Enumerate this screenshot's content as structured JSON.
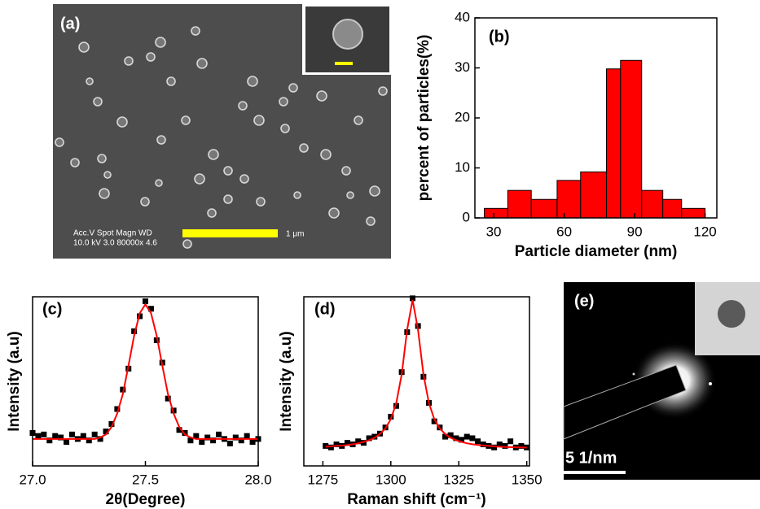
{
  "images": {
    "a": {
      "label": "(a)",
      "info": [
        "Acc.V  Spot Magn    WD",
        "10.0 kV 3.0   80000x  4.6"
      ],
      "scale": "1 μm"
    },
    "e": {
      "label": "(e)",
      "scale": "5 1/nm"
    }
  },
  "chart_data": [
    {
      "type": "histogram",
      "label": "(b)",
      "xlabel": "Particle diameter (nm)",
      "ylabel": "percent of particles(%)",
      "bins": [
        26,
        36,
        46,
        57,
        67,
        78,
        84,
        93,
        102,
        110,
        120
      ],
      "values": [
        1.9,
        5.5,
        3.7,
        7.5,
        9.2,
        29.8,
        31.5,
        5.5,
        3.7,
        1.9
      ],
      "color": "#ff0000",
      "xlim": [
        22,
        125
      ],
      "ylim": [
        0,
        40
      ],
      "xticks": [
        30,
        60,
        90,
        120
      ],
      "yticks": [
        0,
        10,
        20,
        30,
        40
      ]
    },
    {
      "type": "scatter",
      "label": "(c)",
      "xlabel": "2θ(Degree)",
      "ylabel": "Intensity (a.u)",
      "x": [
        27,
        27.025,
        27.05,
        27.075,
        27.1,
        27.125,
        27.15,
        27.175,
        27.2,
        27.225,
        27.25,
        27.275,
        27.3,
        27.325,
        27.35,
        27.375,
        27.4,
        27.425,
        27.45,
        27.475,
        27.5,
        27.525,
        27.55,
        27.575,
        27.6,
        27.625,
        27.65,
        27.675,
        27.7,
        27.725,
        27.75,
        27.775,
        27.8,
        27.825,
        27.85,
        27.875,
        27.9,
        27.925,
        27.95,
        27.975,
        28
      ],
      "series": [
        {
          "color": "#000000",
          "marker": "square",
          "values": [
            0.14,
            0.12,
            0.13,
            0.09,
            0.12,
            0.11,
            0.08,
            0.13,
            0.1,
            0.12,
            0.09,
            0.13,
            0.1,
            0.15,
            0.2,
            0.3,
            0.43,
            0.57,
            0.82,
            0.92,
            1.02,
            0.97,
            0.76,
            0.61,
            0.37,
            0.29,
            0.16,
            0.14,
            0.09,
            0.12,
            0.08,
            0.11,
            0.09,
            0.13,
            0.1,
            0.07,
            0.11,
            0.09,
            0.12,
            0.08,
            0.1
          ]
        },
        {
          "color": "#ff0000",
          "marker": "line",
          "values": [
            0.1,
            0.1,
            0.1,
            0.1,
            0.1,
            0.1,
            0.1,
            0.1,
            0.1,
            0.1,
            0.1,
            0.1,
            0.11,
            0.13,
            0.18,
            0.27,
            0.4,
            0.59,
            0.79,
            0.94,
            1.0,
            0.94,
            0.79,
            0.59,
            0.4,
            0.27,
            0.18,
            0.13,
            0.11,
            0.1,
            0.1,
            0.1,
            0.1,
            0.1,
            0.1,
            0.1,
            0.1,
            0.1,
            0.1,
            0.1,
            0.1
          ]
        }
      ],
      "xlim": [
        27,
        28
      ],
      "ylim": [
        -0.08,
        1.05
      ],
      "xticks": [
        {
          "value": 27,
          "label": "27.0"
        },
        27.5,
        {
          "value": 28,
          "label": "28.0"
        }
      ]
    },
    {
      "type": "scatter",
      "label": "(d)",
      "xlabel": "Raman shift (cm⁻¹)",
      "ylabel": "Intensity (a.u)",
      "x": [
        1276,
        1278,
        1280,
        1282,
        1284,
        1286,
        1288,
        1290,
        1292,
        1294,
        1296,
        1298,
        1300,
        1302,
        1304,
        1306,
        1308,
        1310,
        1312,
        1314,
        1316,
        1318,
        1320,
        1322,
        1324,
        1326,
        1328,
        1330,
        1332,
        1334,
        1336,
        1338,
        1340,
        1342,
        1344,
        1346,
        1348,
        1350
      ],
      "series": [
        {
          "color": "#000000",
          "marker": "square",
          "values": [
            0.05,
            0.04,
            0.06,
            0.05,
            0.07,
            0.06,
            0.08,
            0.07,
            0.1,
            0.11,
            0.13,
            0.17,
            0.24,
            0.31,
            0.53,
            0.79,
            1.01,
            0.83,
            0.5,
            0.33,
            0.21,
            0.17,
            0.11,
            0.12,
            0.1,
            0.09,
            0.11,
            0.1,
            0.08,
            0.06,
            0.05,
            0.04,
            0.06,
            0.05,
            0.08,
            0.04,
            0.05,
            0.04
          ]
        },
        {
          "color": "#ff0000",
          "marker": "line",
          "values": [
            0.045,
            0.047,
            0.05,
            0.052,
            0.056,
            0.061,
            0.067,
            0.076,
            0.087,
            0.103,
            0.127,
            0.164,
            0.224,
            0.329,
            0.515,
            0.806,
            1.0,
            0.806,
            0.515,
            0.329,
            0.224,
            0.164,
            0.127,
            0.103,
            0.087,
            0.076,
            0.067,
            0.061,
            0.056,
            0.052,
            0.05,
            0.047,
            0.045,
            0.043,
            0.042,
            0.041,
            0.04,
            0.039
          ]
        }
      ],
      "xlim": [
        1268,
        1351
      ],
      "ylim": [
        -0.08,
        1.02
      ],
      "xticks": [
        1275,
        1300,
        1325,
        1350
      ]
    }
  ]
}
